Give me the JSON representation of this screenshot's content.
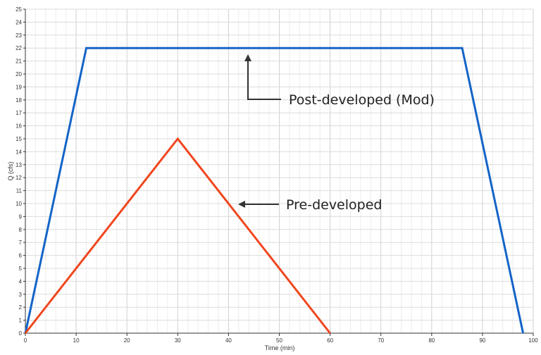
{
  "chart_data": {
    "type": "line",
    "title": "",
    "xlabel": "Time (min)",
    "ylabel": "Q (cfs)",
    "xlim": [
      0,
      100
    ],
    "ylim": [
      0,
      25
    ],
    "x_major_step": 10,
    "x_minor_step": 2,
    "y_step": 1,
    "grid": true,
    "series": [
      {
        "key": "post",
        "color": "#1464C8",
        "points": [
          [
            0,
            0
          ],
          [
            12,
            22
          ],
          [
            86,
            22
          ],
          [
            98,
            0
          ]
        ]
      },
      {
        "key": "pre",
        "color": "#F0461E",
        "points": [
          [
            0,
            0
          ],
          [
            30,
            15
          ],
          [
            60,
            0
          ]
        ]
      }
    ],
    "annotations": [
      {
        "key": "post",
        "text": "Post-developed (Mod)"
      },
      {
        "key": "pre",
        "text": "Pre-developed"
      }
    ]
  }
}
